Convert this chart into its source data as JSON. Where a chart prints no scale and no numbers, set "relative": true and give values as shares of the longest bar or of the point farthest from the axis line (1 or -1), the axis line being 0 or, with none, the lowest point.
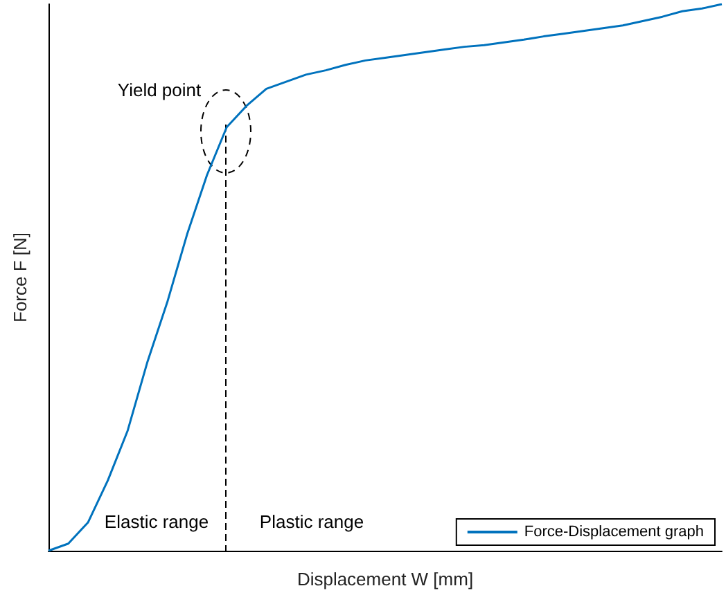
{
  "chart_data": {
    "type": "line",
    "relative": true,
    "xlabel": "Displacement W [mm]",
    "ylabel": "Force F [N]",
    "grid": false,
    "legend": "bottom right",
    "marker": "none",
    "line_style": "solid",
    "categories": [
      null,
      null,
      null,
      null,
      null,
      null,
      null,
      null,
      null,
      null,
      null,
      null,
      null,
      null,
      null,
      null,
      null,
      null,
      null,
      null,
      null,
      null,
      null,
      null,
      null,
      null,
      null,
      null,
      null,
      null,
      null,
      null,
      null,
      null,
      null
    ],
    "series": [
      {
        "name": "Force-Displacement graph",
        "color": "#0072bd",
        "values": [
          0,
          0.013,
          0.052,
          0.129,
          0.22,
          0.346,
          0.455,
          0.579,
          0.687,
          0.775,
          0.814,
          0.845,
          0.858,
          0.871,
          0.879,
          0.889,
          0.897,
          0.902,
          0.907,
          0.912,
          0.917,
          0.922,
          0.925,
          0.93,
          0.935,
          0.941,
          0.946,
          0.951,
          0.956,
          0.961,
          0.969,
          0.977,
          0.987,
          0.992,
          1
        ]
      }
    ],
    "annotations": [
      "Yield point",
      "Elastic range",
      "Plastic range"
    ]
  }
}
